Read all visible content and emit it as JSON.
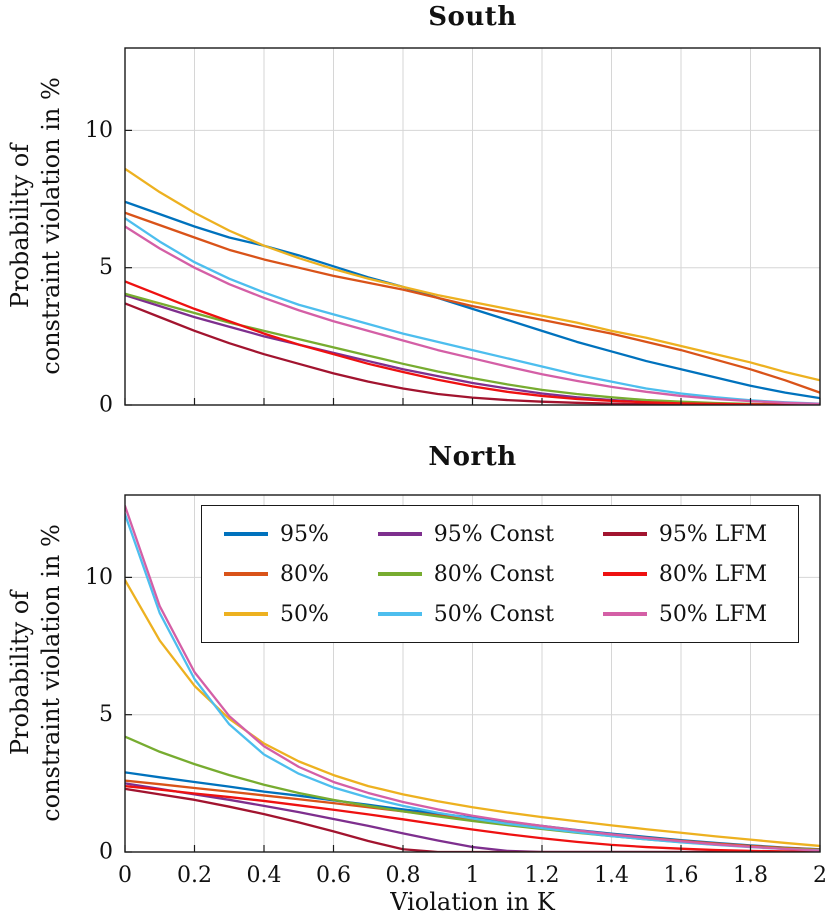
{
  "figure": {
    "xlabel": "Violation in K",
    "ylabel_lines": [
      "Probability of",
      "constraint violation in %"
    ]
  },
  "style": {
    "grid_color": "#d6d6d6",
    "axis_color": "#1a1a1a",
    "background": "#ffffff",
    "line_width": 2.3
  },
  "chart_data": [
    {
      "type": "line",
      "title": "South",
      "xlabel": "Violation in K",
      "ylabel": "Probability of constraint violation in %",
      "xlim": [
        0,
        2
      ],
      "ylim": [
        0,
        13
      ],
      "grid": true,
      "legend_position": "none",
      "xticks": [
        0,
        0.2,
        0.4,
        0.6,
        0.8,
        1,
        1.2,
        1.4,
        1.6,
        1.8,
        2
      ],
      "xtick_labels": [
        "0",
        "0.2",
        "0.4",
        "0.6",
        "0.8",
        "1",
        "1.2",
        "1.4",
        "1.6",
        "1.8",
        "2"
      ],
      "yticks": [
        0,
        5,
        10
      ],
      "ytick_labels": [
        "0",
        "5",
        "10"
      ],
      "x": [
        0,
        0.1,
        0.2,
        0.3,
        0.4,
        0.5,
        0.6,
        0.7,
        0.8,
        0.9,
        1.0,
        1.1,
        1.2,
        1.3,
        1.4,
        1.5,
        1.6,
        1.7,
        1.8,
        1.9,
        2.0
      ],
      "series": [
        {
          "name": "95%",
          "color": "#0072BD",
          "values": [
            7.4,
            6.95,
            6.5,
            6.1,
            5.8,
            5.45,
            5.05,
            4.65,
            4.3,
            3.9,
            3.5,
            3.1,
            2.7,
            2.3,
            1.95,
            1.6,
            1.3,
            1.0,
            0.7,
            0.45,
            0.25
          ]
        },
        {
          "name": "80%",
          "color": "#D95319",
          "values": [
            7.0,
            6.55,
            6.1,
            5.65,
            5.3,
            5.0,
            4.7,
            4.45,
            4.2,
            3.9,
            3.6,
            3.35,
            3.1,
            2.85,
            2.6,
            2.3,
            2.0,
            1.65,
            1.3,
            0.9,
            0.45
          ]
        },
        {
          "name": "50%",
          "color": "#EDB120",
          "values": [
            8.6,
            7.75,
            7.0,
            6.35,
            5.8,
            5.35,
            4.95,
            4.6,
            4.3,
            4.0,
            3.75,
            3.5,
            3.25,
            3.0,
            2.7,
            2.45,
            2.15,
            1.85,
            1.55,
            1.2,
            0.9
          ]
        },
        {
          "name": "95% Const",
          "color": "#7E2F8E",
          "values": [
            4.0,
            3.6,
            3.2,
            2.85,
            2.5,
            2.2,
            1.9,
            1.6,
            1.3,
            1.05,
            0.8,
            0.6,
            0.42,
            0.28,
            0.18,
            0.11,
            0.07,
            0.04,
            0.02,
            0.01,
            0.01
          ]
        },
        {
          "name": "80% Const",
          "color": "#77AC30",
          "values": [
            4.05,
            3.7,
            3.35,
            3.0,
            2.7,
            2.4,
            2.1,
            1.8,
            1.5,
            1.22,
            0.98,
            0.75,
            0.55,
            0.4,
            0.28,
            0.18,
            0.12,
            0.07,
            0.04,
            0.02,
            0.01
          ]
        },
        {
          "name": "50% Const",
          "color": "#4DBEEE",
          "values": [
            6.8,
            5.95,
            5.2,
            4.6,
            4.1,
            3.65,
            3.3,
            2.95,
            2.6,
            2.3,
            2.0,
            1.7,
            1.4,
            1.1,
            0.85,
            0.6,
            0.42,
            0.28,
            0.17,
            0.1,
            0.05
          ]
        },
        {
          "name": "95% LFM",
          "color": "#A2142F",
          "values": [
            3.7,
            3.2,
            2.7,
            2.25,
            1.85,
            1.5,
            1.15,
            0.85,
            0.6,
            0.4,
            0.27,
            0.18,
            0.12,
            0.08,
            0.05,
            0.03,
            0.02,
            0.01,
            0.01,
            0,
            0
          ]
        },
        {
          "name": "80% LFM",
          "color": "#EE1111",
          "values": [
            4.5,
            4.0,
            3.5,
            3.05,
            2.6,
            2.2,
            1.85,
            1.5,
            1.2,
            0.92,
            0.68,
            0.48,
            0.33,
            0.22,
            0.15,
            0.1,
            0.06,
            0.04,
            0.02,
            0.01,
            0.01
          ]
        },
        {
          "name": "50% LFM",
          "color": "#D45FA6",
          "values": [
            6.5,
            5.7,
            5.0,
            4.4,
            3.9,
            3.45,
            3.05,
            2.7,
            2.35,
            2.0,
            1.7,
            1.4,
            1.12,
            0.88,
            0.66,
            0.48,
            0.33,
            0.22,
            0.14,
            0.08,
            0.04
          ]
        }
      ]
    },
    {
      "type": "line",
      "title": "North",
      "xlabel": "Violation in K",
      "ylabel": "Probability of constraint violation in %",
      "xlim": [
        0,
        2
      ],
      "ylim": [
        0,
        13
      ],
      "grid": true,
      "legend_position": "top-center-inside",
      "xticks": [
        0,
        0.2,
        0.4,
        0.6,
        0.8,
        1,
        1.2,
        1.4,
        1.6,
        1.8,
        2
      ],
      "xtick_labels": [
        "0",
        "0.2",
        "0.4",
        "0.6",
        "0.8",
        "1",
        "1.2",
        "1.4",
        "1.6",
        "1.8",
        "2"
      ],
      "yticks": [
        0,
        5,
        10
      ],
      "ytick_labels": [
        "0",
        "5",
        "10"
      ],
      "x": [
        0,
        0.1,
        0.2,
        0.3,
        0.4,
        0.5,
        0.6,
        0.7,
        0.8,
        0.9,
        1.0,
        1.1,
        1.2,
        1.3,
        1.4,
        1.5,
        1.6,
        1.7,
        1.8,
        1.9,
        2.0
      ],
      "series": [
        {
          "name": "95%",
          "color": "#0072BD",
          "values": [
            2.9,
            2.72,
            2.55,
            2.38,
            2.2,
            2.05,
            1.88,
            1.72,
            1.55,
            1.4,
            1.25,
            1.1,
            0.95,
            0.8,
            0.67,
            0.55,
            0.43,
            0.33,
            0.24,
            0.16,
            0.1
          ]
        },
        {
          "name": "80%",
          "color": "#D95319",
          "values": [
            2.6,
            2.47,
            2.33,
            2.2,
            2.06,
            1.92,
            1.78,
            1.63,
            1.48,
            1.33,
            1.18,
            1.04,
            0.9,
            0.77,
            0.64,
            0.52,
            0.41,
            0.31,
            0.22,
            0.15,
            0.09
          ]
        },
        {
          "name": "50%",
          "color": "#EDB120",
          "values": [
            9.9,
            7.7,
            6.05,
            4.85,
            3.95,
            3.3,
            2.8,
            2.4,
            2.1,
            1.85,
            1.63,
            1.44,
            1.27,
            1.12,
            0.97,
            0.83,
            0.7,
            0.57,
            0.45,
            0.33,
            0.22
          ]
        },
        {
          "name": "95% Const",
          "color": "#7E2F8E",
          "values": [
            2.5,
            2.3,
            2.1,
            1.9,
            1.68,
            1.45,
            1.2,
            0.95,
            0.68,
            0.42,
            0.18,
            0.04,
            0,
            0,
            0,
            0,
            0,
            0,
            0,
            0,
            0
          ]
        },
        {
          "name": "80% Const",
          "color": "#77AC30",
          "values": [
            4.2,
            3.65,
            3.2,
            2.8,
            2.45,
            2.15,
            1.9,
            1.68,
            1.48,
            1.3,
            1.13,
            0.98,
            0.84,
            0.7,
            0.58,
            0.46,
            0.36,
            0.27,
            0.19,
            0.12,
            0.07
          ]
        },
        {
          "name": "50% Const",
          "color": "#4DBEEE",
          "values": [
            12.3,
            8.7,
            6.3,
            4.65,
            3.55,
            2.85,
            2.35,
            1.98,
            1.68,
            1.43,
            1.22,
            1.03,
            0.87,
            0.72,
            0.58,
            0.46,
            0.35,
            0.26,
            0.18,
            0.11,
            0.06
          ]
        },
        {
          "name": "95% LFM",
          "color": "#A2142F",
          "values": [
            2.3,
            2.1,
            1.9,
            1.65,
            1.38,
            1.08,
            0.75,
            0.4,
            0.1,
            0,
            0,
            0,
            0,
            0,
            0,
            0,
            0,
            0,
            0,
            0,
            0
          ]
        },
        {
          "name": "80% LFM",
          "color": "#EE1111",
          "values": [
            2.4,
            2.27,
            2.13,
            2.0,
            1.86,
            1.7,
            1.54,
            1.37,
            1.19,
            1.0,
            0.82,
            0.65,
            0.5,
            0.37,
            0.26,
            0.18,
            0.12,
            0.07,
            0.04,
            0.02,
            0.01
          ]
        },
        {
          "name": "50% LFM",
          "color": "#D45FA6",
          "values": [
            12.6,
            8.95,
            6.55,
            4.95,
            3.85,
            3.1,
            2.55,
            2.15,
            1.82,
            1.55,
            1.32,
            1.12,
            0.95,
            0.79,
            0.64,
            0.51,
            0.39,
            0.28,
            0.19,
            0.11,
            0.05
          ]
        }
      ]
    }
  ],
  "legend": {
    "entries": [
      "95%",
      "80%",
      "50%",
      "95% Const",
      "80% Const",
      "50% Const",
      "95% LFM",
      "80% LFM",
      "50% LFM"
    ]
  }
}
